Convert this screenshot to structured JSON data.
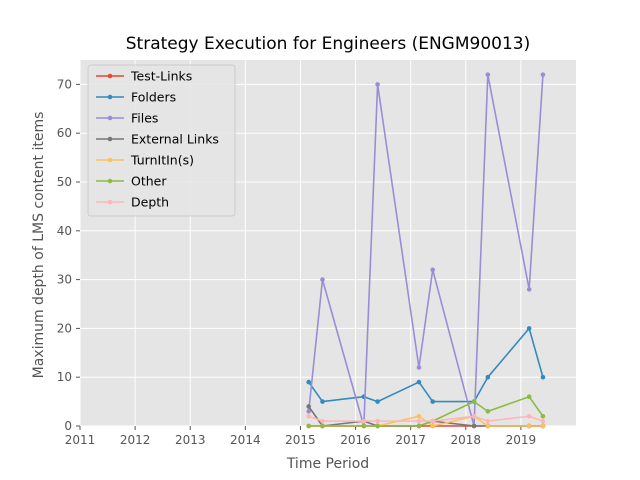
{
  "chart_data": {
    "type": "line",
    "title": "Strategy Execution for Engineers (ENGM90013)",
    "xlabel": "Time Period",
    "ylabel": "Maximum depth of LMS content items",
    "xlim": [
      2011.0,
      2020.0
    ],
    "ylim": [
      0,
      75
    ],
    "x_ticks": [
      "2011",
      "2012",
      "2013",
      "2014",
      "2015",
      "2016",
      "2017",
      "2018",
      "2019"
    ],
    "y_ticks": [
      "0",
      "10",
      "20",
      "30",
      "40",
      "50",
      "60",
      "70"
    ],
    "grid": true,
    "legend_position": "upper-left",
    "x": [
      2015.15,
      2015.4,
      2016.15,
      2016.4,
      2017.15,
      2017.4,
      2018.15,
      2018.4,
      2019.15,
      2019.4
    ],
    "series": [
      {
        "name": "Test-Links",
        "color": "#e24a33",
        "values": [
          0,
          0,
          0,
          0,
          0,
          0,
          0,
          0,
          0,
          0
        ]
      },
      {
        "name": "Folders",
        "color": "#348abd",
        "values": [
          9,
          5,
          6,
          5,
          9,
          5,
          5,
          10,
          20,
          10
        ]
      },
      {
        "name": "Files",
        "color": "#988ed5",
        "values": [
          3,
          30,
          0,
          70,
          12,
          32,
          0,
          72,
          28,
          72
        ]
      },
      {
        "name": "External Links",
        "color": "#777777",
        "values": [
          4,
          0,
          1,
          0,
          0,
          1,
          0,
          0,
          0,
          0
        ]
      },
      {
        "name": "TurnItIn(s)",
        "color": "#fbc15e",
        "values": [
          0,
          0,
          0,
          0,
          2,
          0,
          2,
          0,
          0,
          0
        ]
      },
      {
        "name": "Other",
        "color": "#8eba42",
        "values": [
          0,
          0,
          0,
          0,
          0,
          1,
          5,
          3,
          6,
          2
        ]
      },
      {
        "name": "Depth",
        "color": "#ffb5b8",
        "values": [
          2,
          1,
          1,
          1,
          1,
          1,
          2,
          1,
          2,
          1
        ]
      }
    ]
  }
}
